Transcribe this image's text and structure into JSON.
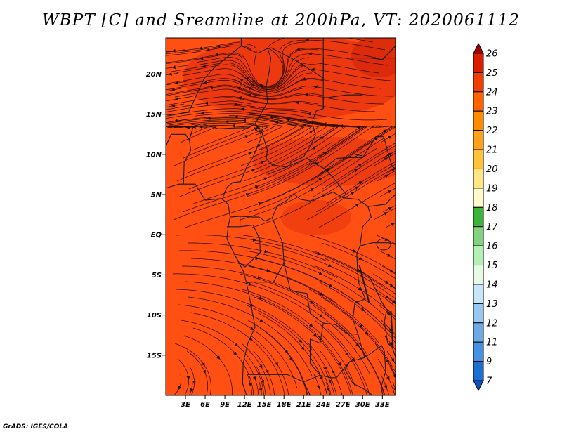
{
  "title": "WBPT [C] and Sreamline at 200hPa, VT: 2020061112",
  "credit": "GrADS: IGES/COLA",
  "map": {
    "lon_range": [
      0,
      35
    ],
    "lat_range": [
      -20,
      24.5
    ],
    "lon_ticks": [
      3,
      6,
      9,
      12,
      15,
      18,
      21,
      24,
      27,
      30,
      33
    ],
    "lon_labels": [
      "3E",
      "6E",
      "9E",
      "12E",
      "15E",
      "18E",
      "21E",
      "24E",
      "27E",
      "30E",
      "33E"
    ],
    "lat_ticks": [
      20,
      15,
      10,
      5,
      0,
      -5,
      -10,
      -15
    ],
    "lat_labels": [
      "20N",
      "15N",
      "10N",
      "5N",
      "EQ",
      "5S",
      "10S",
      "15S"
    ],
    "field_color": "#ff4f12",
    "field_color_dark": "#f23a10",
    "boundary_color": "#1a1a1a",
    "streamline_color": "#2a0a00"
  },
  "colorbar": {
    "labels": [
      "26",
      "25",
      "24",
      "23",
      "22",
      "21",
      "20",
      "19",
      "18",
      "17",
      "16",
      "15",
      "14",
      "13",
      "12",
      "11",
      "9",
      "7"
    ],
    "colors": [
      "#a50000",
      "#dc1e00",
      "#f23c00",
      "#ff6400",
      "#ff8c00",
      "#ffa21a",
      "#ffc43c",
      "#ffe682",
      "#fffac8",
      "#3cb43c",
      "#82d282",
      "#b4f0b4",
      "#e6fae6",
      "#c8e6fa",
      "#96c8f0",
      "#6eaae6",
      "#4691e1",
      "#1e6ed2",
      "#0a50c8"
    ]
  }
}
